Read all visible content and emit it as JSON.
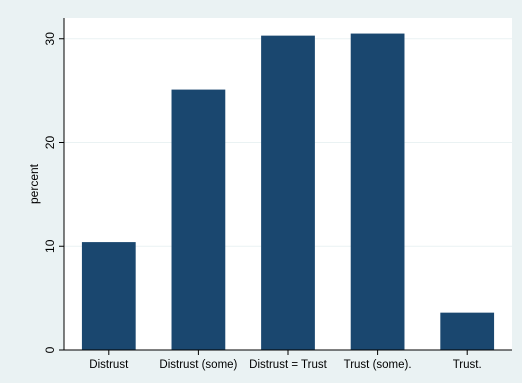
{
  "chart_data": {
    "type": "bar",
    "title": "",
    "xlabel": "",
    "ylabel": "percent",
    "categories": [
      "Distrust",
      "Distrust (some)",
      "Distrust = Trust",
      "Trust (some).",
      "Trust."
    ],
    "values": [
      10.4,
      25.1,
      30.3,
      30.5,
      3.6
    ],
    "ylim": [
      0,
      32
    ],
    "yticks": [
      0,
      10,
      20,
      30
    ],
    "grid": true,
    "legend": "none",
    "colors": {
      "bar": "#1a476f",
      "background": "#eaf2f3",
      "plot_background": "#ffffff",
      "grid": "#eaf2f3",
      "axis": "#000000"
    }
  }
}
